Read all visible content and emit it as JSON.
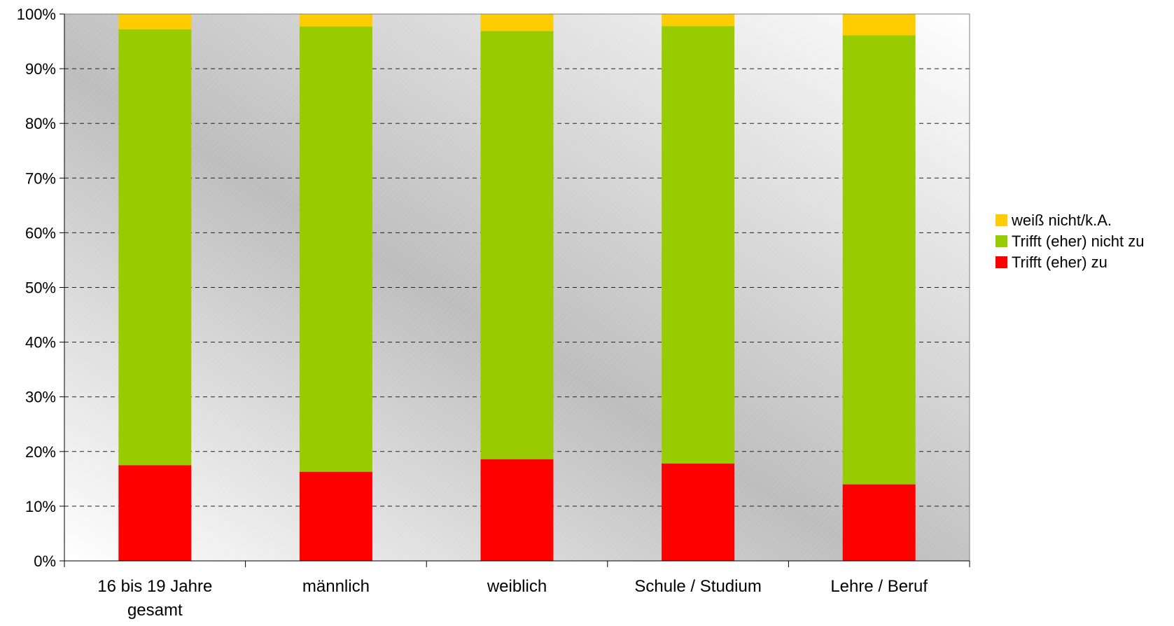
{
  "chart_data": {
    "type": "bar",
    "stacked": true,
    "percent_stacked": true,
    "title": "",
    "xlabel": "",
    "ylabel": "",
    "ylim": [
      0,
      100
    ],
    "y_ticks": [
      "0%",
      "10%",
      "20%",
      "30%",
      "40%",
      "50%",
      "60%",
      "70%",
      "80%",
      "90%",
      "100%"
    ],
    "grid": "horizontal dashed",
    "legend_position": "right",
    "categories": [
      [
        "16 bis 19 Jahre",
        "gesamt"
      ],
      [
        "männlich"
      ],
      [
        "weiblich"
      ],
      [
        "Schule / Studium"
      ],
      [
        "Lehre / Beruf"
      ]
    ],
    "series": [
      {
        "name": "Trifft (eher) zu",
        "color": "#ff0000",
        "values": [
          17.5,
          16.3,
          18.6,
          17.8,
          14.0
        ]
      },
      {
        "name": "Trifft (eher) nicht zu",
        "color": "#99cc00",
        "values": [
          79.7,
          81.4,
          78.3,
          80.0,
          82.1
        ]
      },
      {
        "name": "weiß nicht/k.A.",
        "color": "#ffcc00",
        "values": [
          2.8,
          2.3,
          3.1,
          2.2,
          3.9
        ]
      }
    ],
    "legend_order": [
      2,
      1,
      0
    ]
  }
}
